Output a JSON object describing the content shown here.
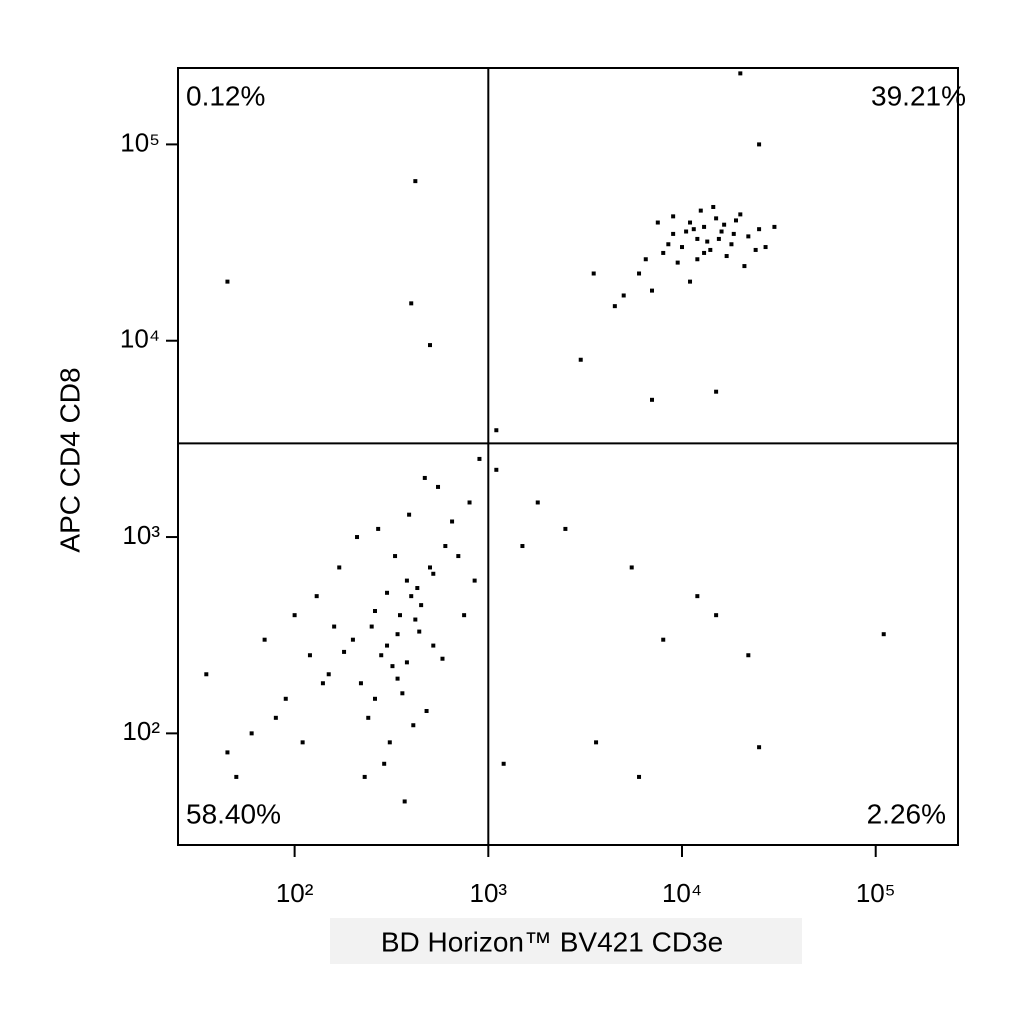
{
  "chart_data": {
    "type": "scatter",
    "x_label": "BD Horizon™ BV421 CD3e",
    "y_label": "APC CD4 CD8",
    "xscale": "log",
    "yscale": "log",
    "xlim": [
      25,
      266000
    ],
    "ylim": [
      27,
      245000
    ],
    "xticks": [
      {
        "value": 100,
        "label": "10²"
      },
      {
        "value": 1000,
        "label": "10³"
      },
      {
        "value": 10000,
        "label": "10⁴"
      },
      {
        "value": 100000,
        "label": "10⁵"
      }
    ],
    "yticks": [
      {
        "value": 100,
        "label": "10²"
      },
      {
        "value": 1000,
        "label": "10³"
      },
      {
        "value": 10000,
        "label": "10⁴"
      },
      {
        "value": 100000,
        "label": "10⁵"
      }
    ],
    "quadrant_x": 1000,
    "quadrant_y": 3000,
    "color": "#000000",
    "annotations": [
      "0.12%",
      "39.21%",
      "58.40%",
      "2.26%"
    ],
    "x": [
      6000,
      8000,
      9000,
      10000,
      11000,
      12000,
      13000,
      14000,
      15000,
      16000,
      18000,
      20000,
      22000,
      25000,
      7000,
      9500,
      12500,
      17000,
      21000,
      11000,
      13500,
      16500,
      8500,
      10500,
      19000,
      6500,
      14500,
      24000,
      30000,
      5000,
      4500,
      3500,
      27000,
      9000,
      12000,
      15500,
      18500,
      7500,
      11500,
      13000,
      200,
      250,
      300,
      350,
      400,
      280,
      320,
      380,
      450,
      500,
      220,
      260,
      340,
      420,
      600,
      700,
      150,
      180,
      240,
      310,
      360,
      430,
      520,
      650,
      800,
      120,
      90,
      60,
      45,
      70,
      100,
      130,
      170,
      210,
      270,
      330,
      390,
      470,
      550,
      900,
      230,
      290,
      370,
      410,
      480,
      580,
      160,
      140,
      110,
      80,
      50,
      35,
      260,
      300,
      340,
      380,
      440,
      520,
      750,
      850,
      1100,
      1500,
      2500,
      3600,
      5500,
      6000,
      8000,
      12000,
      15000,
      22000,
      25000,
      110000,
      1200,
      1800,
      420,
      45,
      400,
      500,
      20000,
      25000,
      3000,
      7000,
      15000,
      1100
    ],
    "values": [
      22000,
      28000,
      35000,
      30000,
      40000,
      33000,
      38000,
      29000,
      42000,
      36000,
      31000,
      44000,
      34000,
      37000,
      18000,
      25000,
      46000,
      27000,
      24000,
      20000,
      32000,
      39000,
      31000,
      36000,
      41000,
      26000,
      48000,
      29000,
      38000,
      17000,
      15000,
      22000,
      30000,
      43000,
      26000,
      33000,
      35000,
      40000,
      37000,
      28000,
      300,
      350,
      280,
      400,
      500,
      250,
      220,
      600,
      450,
      700,
      180,
      150,
      320,
      380,
      900,
      800,
      200,
      260,
      120,
      90,
      160,
      550,
      650,
      1200,
      1500,
      250,
      150,
      100,
      80,
      300,
      400,
      500,
      700,
      1000,
      1100,
      800,
      1300,
      2000,
      1800,
      2500,
      60,
      70,
      45,
      110,
      130,
      240,
      350,
      180,
      90,
      120,
      60,
      200,
      420,
      520,
      190,
      230,
      330,
      280,
      400,
      600,
      2200,
      900,
      1100,
      90,
      700,
      60,
      300,
      500,
      400,
      250,
      85,
      320,
      70,
      1500,
      65000,
      20000,
      15500,
      9500,
      230000,
      100000,
      8000,
      5000,
      5500,
      3500
    ]
  }
}
